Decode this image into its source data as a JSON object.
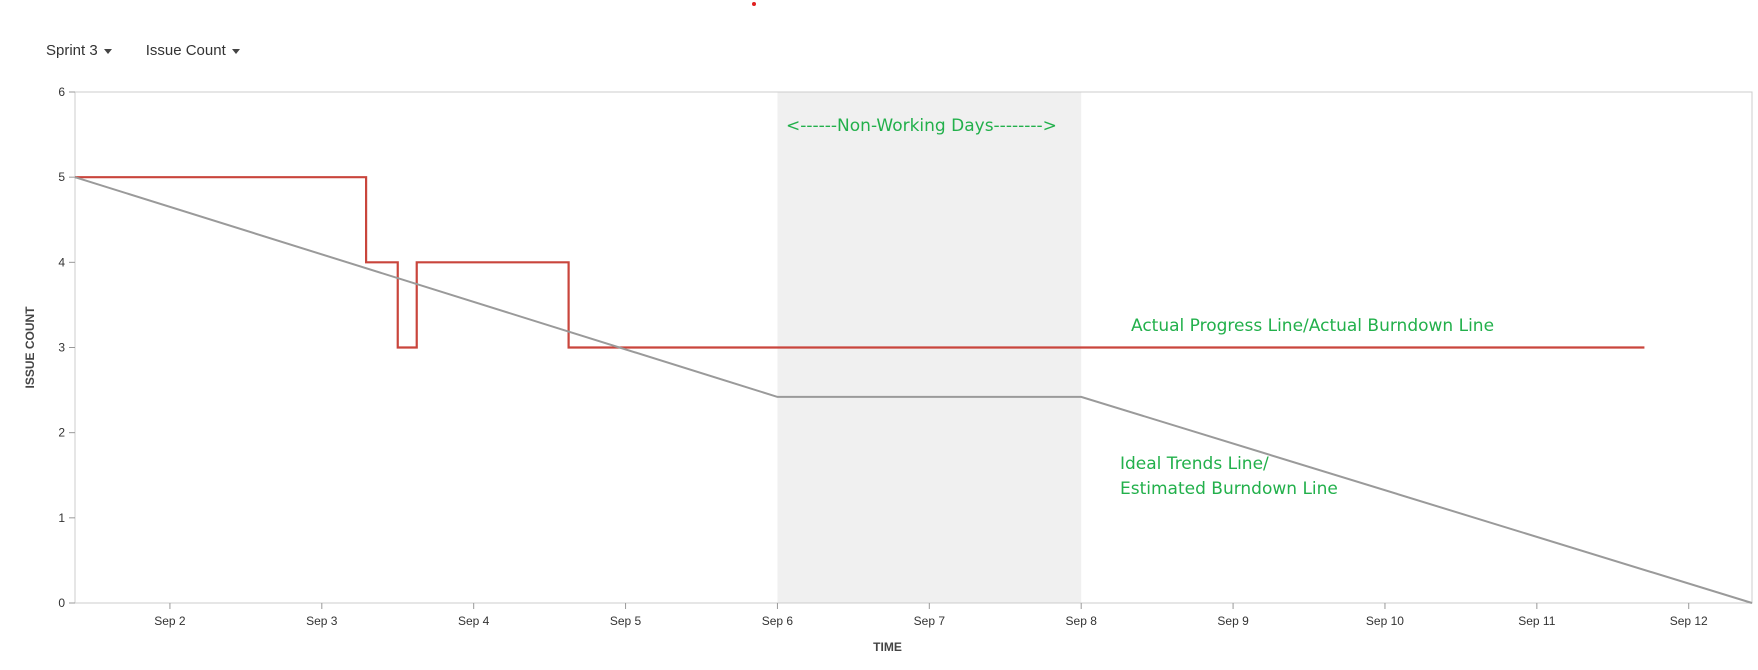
{
  "toolbar": {
    "sprint_label": "Sprint 3",
    "metric_label": "Issue Count"
  },
  "colors": {
    "actual": "#c9453c",
    "ideal": "#9a9a9a",
    "non_working": "#f0f0f0",
    "annotation": "#22b04b"
  },
  "chart_data": {
    "type": "line",
    "xlabel": "TIME",
    "ylabel": "ISSUE COUNT",
    "xlim": [
      "2023-09-01 09:00",
      "2023-09-12 10:00"
    ],
    "ylim": [
      0,
      6
    ],
    "yticks": [
      0,
      1,
      2,
      3,
      4,
      5,
      6
    ],
    "xticks": [
      {
        "date": "2023-09-02",
        "label": "Sep 2"
      },
      {
        "date": "2023-09-03",
        "label": "Sep 3"
      },
      {
        "date": "2023-09-04",
        "label": "Sep 4"
      },
      {
        "date": "2023-09-05",
        "label": "Sep 5"
      },
      {
        "date": "2023-09-06",
        "label": "Sep 6"
      },
      {
        "date": "2023-09-07",
        "label": "Sep 7"
      },
      {
        "date": "2023-09-08",
        "label": "Sep 8"
      },
      {
        "date": "2023-09-09",
        "label": "Sep 9"
      },
      {
        "date": "2023-09-10",
        "label": "Sep 10"
      },
      {
        "date": "2023-09-11",
        "label": "Sep 11"
      },
      {
        "date": "2023-09-12",
        "label": "Sep 12"
      }
    ],
    "non_working_range": [
      "2023-09-06",
      "2023-09-08"
    ],
    "series": [
      {
        "key": "actual",
        "step": true,
        "points": [
          {
            "x": "2023-09-01 09:00",
            "y": 5
          },
          {
            "x": "2023-09-03 07:00",
            "y": 4
          },
          {
            "x": "2023-09-03 12:00",
            "y": 3
          },
          {
            "x": "2023-09-03 15:00",
            "y": 4
          },
          {
            "x": "2023-09-04 15:00",
            "y": 3
          },
          {
            "x": "2023-09-11 17:00",
            "y": 3
          }
        ]
      },
      {
        "key": "ideal",
        "step": false,
        "points": [
          {
            "x": "2023-09-01 09:00",
            "y": 5
          },
          {
            "x": "2023-09-06 00:00",
            "y": 2.42
          },
          {
            "x": "2023-09-08 00:00",
            "y": 2.42
          },
          {
            "x": "2023-09-12 10:00",
            "y": 0
          }
        ]
      }
    ],
    "annotations": [
      {
        "text": "<------Non-Working Days-------->"
      },
      {
        "text": "Actual Progress Line/Actual Burndown Line"
      },
      {
        "text": "Ideal Trends Line/"
      },
      {
        "text": "Estimated Burndown Line"
      }
    ]
  }
}
